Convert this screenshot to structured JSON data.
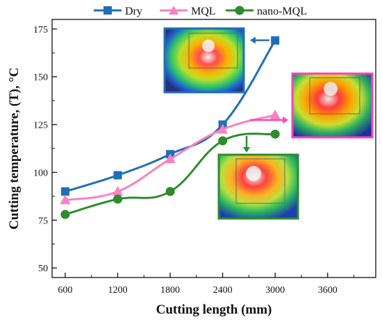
{
  "chart_data": {
    "type": "line",
    "title": "",
    "xlabel": "Cutting length (mm)",
    "ylabel": "Cutting temperature, (T), °C",
    "xlim": [
      450,
      4150
    ],
    "ylim": [
      45,
      180
    ],
    "x_ticks": [
      600,
      1200,
      1800,
      2400,
      3000,
      3600
    ],
    "y_ticks": [
      50,
      75,
      100,
      125,
      150,
      175
    ],
    "x_tick_labels": [
      "600",
      "1200",
      "1800",
      "2400",
      "3000",
      "3600"
    ],
    "y_tick_labels": [
      "50",
      "75",
      "100",
      "125",
      "150",
      "175"
    ],
    "x": [
      600,
      1200,
      1800,
      2400,
      3000
    ],
    "series": [
      {
        "name": "Dry",
        "values": [
          90,
          98.5,
          109.5,
          125,
          169
        ],
        "color": "#1f6fb5",
        "marker": "square"
      },
      {
        "name": "MQL",
        "values": [
          85.5,
          90,
          107,
          122.5,
          130
        ],
        "color": "#ff80c0",
        "marker": "triangle"
      },
      {
        "name": "nano-MQL",
        "values": [
          78,
          86,
          90,
          116.5,
          120
        ],
        "color": "#2e8b2e",
        "marker": "circle"
      }
    ],
    "legend": {
      "placement": "top",
      "entries": [
        "Dry",
        "MQL",
        "nano-MQL"
      ]
    },
    "grid": false,
    "annotations": {
      "thermal_images": [
        {
          "series": "Dry",
          "border_color": "#1f6fb5",
          "arrow": "left"
        },
        {
          "series": "MQL",
          "border_color": "#ff40c0",
          "arrow": "right"
        },
        {
          "series": "nano-MQL",
          "border_color": "#2e8b2e",
          "arrow": "down"
        }
      ]
    }
  }
}
